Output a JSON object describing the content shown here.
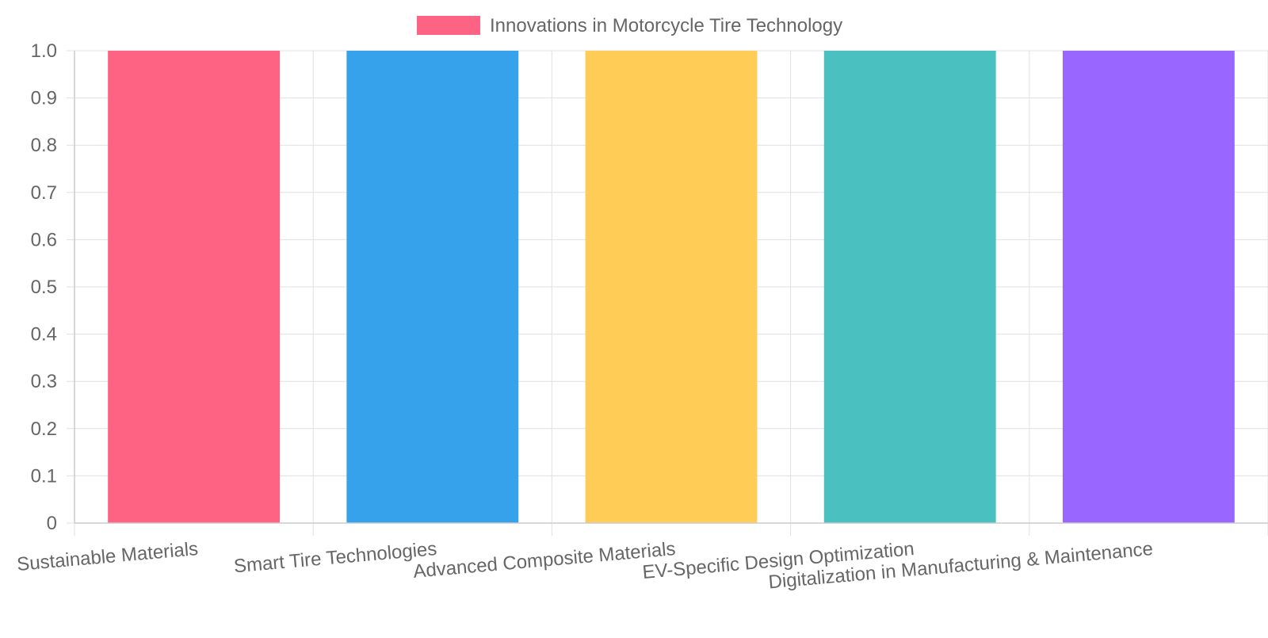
{
  "chart_data": {
    "type": "bar",
    "categories": [
      "Sustainable Materials",
      "Smart Tire Technologies",
      "Advanced Composite Materials",
      "EV-Specific Design Optimization",
      "Digitalization in Manufacturing & Maintenance"
    ],
    "series": [
      {
        "name": "Innovations in Motorcycle Tire Technology",
        "values": [
          1,
          1,
          1,
          1,
          1
        ]
      }
    ],
    "bar_colors": [
      "#ff6384",
      "#36a2eb",
      "#ffcd56",
      "#4bc0c0",
      "#9966ff"
    ],
    "ylim": [
      0,
      1
    ],
    "y_ticks": [
      0,
      0.1,
      0.2,
      0.3,
      0.4,
      0.5,
      0.6,
      0.7,
      0.8,
      0.9,
      1.0
    ],
    "y_tick_labels": [
      "0",
      "0.1",
      "0.2",
      "0.3",
      "0.4",
      "0.5",
      "0.6",
      "0.7",
      "0.8",
      "0.9",
      "1.0"
    ],
    "grid": true,
    "legend_position": "top-center",
    "text_color": "#666666",
    "grid_color": "#e0e0e0"
  }
}
